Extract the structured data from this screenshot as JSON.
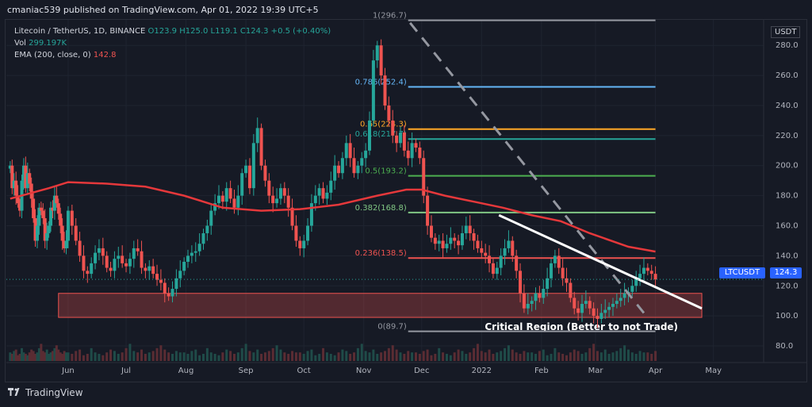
{
  "header": {
    "published": "cmaniac539 published on TradingView.com, Apr 01, 2022 19:39 UTC+5"
  },
  "legend": {
    "symbol": "Litecoin / TetherUS, 1D, BINANCE",
    "ohlc": "O123.9 H125.0 L119.1 C124.3 +0.5 (+0.40%)",
    "vol_label": "Vol",
    "vol_value": "299.197K",
    "ema_label": "EMA (200, close, 0)",
    "ema_value": "142.8"
  },
  "price_label": {
    "symbol": "LTCUSDT",
    "price": "124.3"
  },
  "currency": "USDT",
  "footer": {
    "brand": "TradingView"
  },
  "colors": {
    "up": "#26a69a",
    "down": "#ef5350",
    "ema": "#e5383b",
    "background": "#161a25",
    "fib_0": "#9598a1",
    "fib_0236": "#ef5350",
    "fib_0382": "#81c784",
    "fib_05": "#4caf50",
    "fib_0618": "#26a69a",
    "fib_065": "#ffa726",
    "fib_0786": "#64b5f6",
    "fib_1": "#9598a1"
  },
  "chart_data": {
    "type": "candlestick",
    "title": "Litecoin / TetherUS, 1D, BINANCE",
    "ylim": [
      70,
      297
    ],
    "y_ticks": [
      80,
      100,
      120,
      140,
      160,
      180,
      200,
      220,
      240,
      260,
      280
    ],
    "x_tick_labels": [
      "Jun",
      "Jul",
      "Aug",
      "Sep",
      "Oct",
      "Nov",
      "Dec",
      "2022",
      "Feb",
      "Mar",
      "Apr",
      "May"
    ],
    "x_tick_days": [
      0,
      30,
      61,
      92,
      122,
      153,
      183,
      214,
      245,
      273,
      304,
      334
    ],
    "start_date": "2021-06-01",
    "last_price": 124.3,
    "ema200": [
      [
        -30,
        178
      ],
      [
        -10,
        185
      ],
      [
        0,
        189
      ],
      [
        20,
        188
      ],
      [
        40,
        186
      ],
      [
        60,
        180
      ],
      [
        80,
        172
      ],
      [
        100,
        170
      ],
      [
        120,
        171
      ],
      [
        140,
        174
      ],
      [
        160,
        180
      ],
      [
        175,
        184
      ],
      [
        183,
        184
      ],
      [
        195,
        180
      ],
      [
        210,
        176
      ],
      [
        225,
        172
      ],
      [
        240,
        167
      ],
      [
        255,
        163
      ],
      [
        270,
        155
      ],
      [
        290,
        146
      ],
      [
        304,
        142.8
      ]
    ],
    "candles_approx": [
      [
        -30,
        200
      ],
      [
        -29,
        185
      ],
      [
        -28,
        190
      ],
      [
        -27,
        180
      ],
      [
        -26,
        175
      ],
      [
        -25,
        170
      ],
      [
        -24,
        190
      ],
      [
        -23,
        200
      ],
      [
        -22,
        185
      ],
      [
        -21,
        195
      ],
      [
        -20,
        188
      ],
      [
        -19,
        178
      ],
      [
        -18,
        165
      ],
      [
        -17,
        150
      ],
      [
        -16,
        160
      ],
      [
        -15,
        172
      ],
      [
        -14,
        170
      ],
      [
        -13,
        165
      ],
      [
        -12,
        150
      ],
      [
        -11,
        155
      ],
      [
        -10,
        160
      ],
      [
        -9,
        172
      ],
      [
        -8,
        170
      ],
      [
        -7,
        180
      ],
      [
        -6,
        175
      ],
      [
        -5,
        168
      ],
      [
        -4,
        160
      ],
      [
        -3,
        150
      ],
      [
        -2,
        145
      ],
      [
        -1,
        150
      ],
      [
        0,
        170
      ],
      [
        2,
        160
      ],
      [
        4,
        150
      ],
      [
        6,
        140
      ],
      [
        8,
        130
      ],
      [
        10,
        128
      ],
      [
        12,
        135
      ],
      [
        14,
        142
      ],
      [
        16,
        145
      ],
      [
        18,
        140
      ],
      [
        20,
        132
      ],
      [
        22,
        130
      ],
      [
        24,
        138
      ],
      [
        26,
        140
      ],
      [
        28,
        135
      ],
      [
        30,
        133
      ],
      [
        32,
        138
      ],
      [
        34,
        145
      ],
      [
        36,
        143
      ],
      [
        38,
        132
      ],
      [
        40,
        130
      ],
      [
        42,
        133
      ],
      [
        44,
        128
      ],
      [
        46,
        124
      ],
      [
        48,
        122
      ],
      [
        50,
        115
      ],
      [
        52,
        113
      ],
      [
        54,
        118
      ],
      [
        56,
        125
      ],
      [
        58,
        130
      ],
      [
        60,
        136
      ],
      [
        62,
        140
      ],
      [
        64,
        142
      ],
      [
        66,
        143
      ],
      [
        68,
        148
      ],
      [
        70,
        155
      ],
      [
        72,
        160
      ],
      [
        74,
        170
      ],
      [
        76,
        175
      ],
      [
        78,
        180
      ],
      [
        80,
        176
      ],
      [
        82,
        185
      ],
      [
        84,
        178
      ],
      [
        86,
        172
      ],
      [
        88,
        180
      ],
      [
        90,
        195
      ],
      [
        92,
        200
      ],
      [
        94,
        185
      ],
      [
        96,
        215
      ],
      [
        98,
        225
      ],
      [
        100,
        200
      ],
      [
        102,
        190
      ],
      [
        104,
        180
      ],
      [
        106,
        175
      ],
      [
        108,
        178
      ],
      [
        110,
        185
      ],
      [
        112,
        180
      ],
      [
        114,
        172
      ],
      [
        116,
        160
      ],
      [
        118,
        150
      ],
      [
        120,
        145
      ],
      [
        122,
        150
      ],
      [
        124,
        160
      ],
      [
        126,
        175
      ],
      [
        128,
        180
      ],
      [
        130,
        185
      ],
      [
        132,
        178
      ],
      [
        134,
        182
      ],
      [
        136,
        190
      ],
      [
        138,
        200
      ],
      [
        140,
        195
      ],
      [
        142,
        205
      ],
      [
        144,
        215
      ],
      [
        146,
        205
      ],
      [
        148,
        195
      ],
      [
        150,
        200
      ],
      [
        152,
        205
      ],
      [
        154,
        210
      ],
      [
        156,
        230
      ],
      [
        158,
        270
      ],
      [
        160,
        280
      ],
      [
        162,
        260
      ],
      [
        164,
        240
      ],
      [
        166,
        230
      ],
      [
        168,
        220
      ],
      [
        170,
        215
      ],
      [
        172,
        222
      ],
      [
        174,
        210
      ],
      [
        176,
        205
      ],
      [
        178,
        215
      ],
      [
        180,
        212
      ],
      [
        182,
        205
      ],
      [
        184,
        180
      ],
      [
        186,
        160
      ],
      [
        188,
        152
      ],
      [
        190,
        148
      ],
      [
        192,
        150
      ],
      [
        194,
        145
      ],
      [
        196,
        148
      ],
      [
        198,
        152
      ],
      [
        200,
        150
      ],
      [
        202,
        147
      ],
      [
        204,
        155
      ],
      [
        206,
        160
      ],
      [
        208,
        155
      ],
      [
        210,
        150
      ],
      [
        212,
        145
      ],
      [
        214,
        142
      ],
      [
        216,
        140
      ],
      [
        218,
        135
      ],
      [
        220,
        128
      ],
      [
        222,
        132
      ],
      [
        224,
        140
      ],
      [
        226,
        145
      ],
      [
        228,
        150
      ],
      [
        230,
        140
      ],
      [
        232,
        130
      ],
      [
        234,
        115
      ],
      [
        236,
        105
      ],
      [
        238,
        108
      ],
      [
        240,
        110
      ],
      [
        242,
        115
      ],
      [
        244,
        112
      ],
      [
        246,
        118
      ],
      [
        248,
        125
      ],
      [
        250,
        135
      ],
      [
        252,
        140
      ],
      [
        254,
        132
      ],
      [
        256,
        125
      ],
      [
        258,
        122
      ],
      [
        260,
        112
      ],
      [
        262,
        105
      ],
      [
        264,
        102
      ],
      [
        266,
        108
      ],
      [
        268,
        110
      ],
      [
        270,
        105
      ],
      [
        272,
        100
      ],
      [
        274,
        98
      ],
      [
        276,
        102
      ],
      [
        278,
        104
      ],
      [
        280,
        106
      ],
      [
        282,
        108
      ],
      [
        284,
        110
      ],
      [
        286,
        112
      ],
      [
        288,
        115
      ],
      [
        290,
        116
      ],
      [
        292,
        120
      ],
      [
        294,
        125
      ],
      [
        296,
        128
      ],
      [
        298,
        132
      ],
      [
        300,
        130
      ],
      [
        302,
        128
      ],
      [
        304,
        124.3
      ]
    ],
    "fibonacci": {
      "levels": [
        {
          "level": "0",
          "price": 89.7,
          "label": "0(89.7)"
        },
        {
          "level": "0.236",
          "price": 138.5,
          "label": "0.236(138.5)"
        },
        {
          "level": "0.382",
          "price": 168.8,
          "label": "0.382(168.8)"
        },
        {
          "level": "0.5",
          "price": 193.2,
          "label": "0.5(193.2)"
        },
        {
          "level": "0.618",
          "price": 217.7,
          "label": "0.618(217.7)"
        },
        {
          "level": "0.65",
          "price": 224.3,
          "label": "0.65(224.3)"
        },
        {
          "level": "0.786",
          "price": 252.4,
          "label": "0.786(252.4)"
        },
        {
          "level": "1",
          "price": 296.7,
          "label": "1(296.7)"
        }
      ],
      "x_start_day": 176,
      "x_end_day": 304
    },
    "dashed_trendline": {
      "from": [
        177,
        295
      ],
      "to": [
        298,
        102
      ]
    },
    "white_trendline": {
      "from": [
        223,
        167
      ],
      "to": [
        328,
        105
      ]
    },
    "critical_region": {
      "x_start_day": -5,
      "x_end_day": 328,
      "y_low": 99,
      "y_high": 115,
      "label": "Critical Region (Better to not Trade)"
    },
    "volume_bars_approx": [
      6,
      5,
      7,
      8,
      4,
      5,
      9,
      6,
      5,
      4,
      6,
      8,
      7,
      5,
      6,
      9,
      12,
      7,
      6,
      8,
      5,
      6,
      7,
      9,
      11,
      8,
      6,
      5,
      7,
      6
    ]
  }
}
